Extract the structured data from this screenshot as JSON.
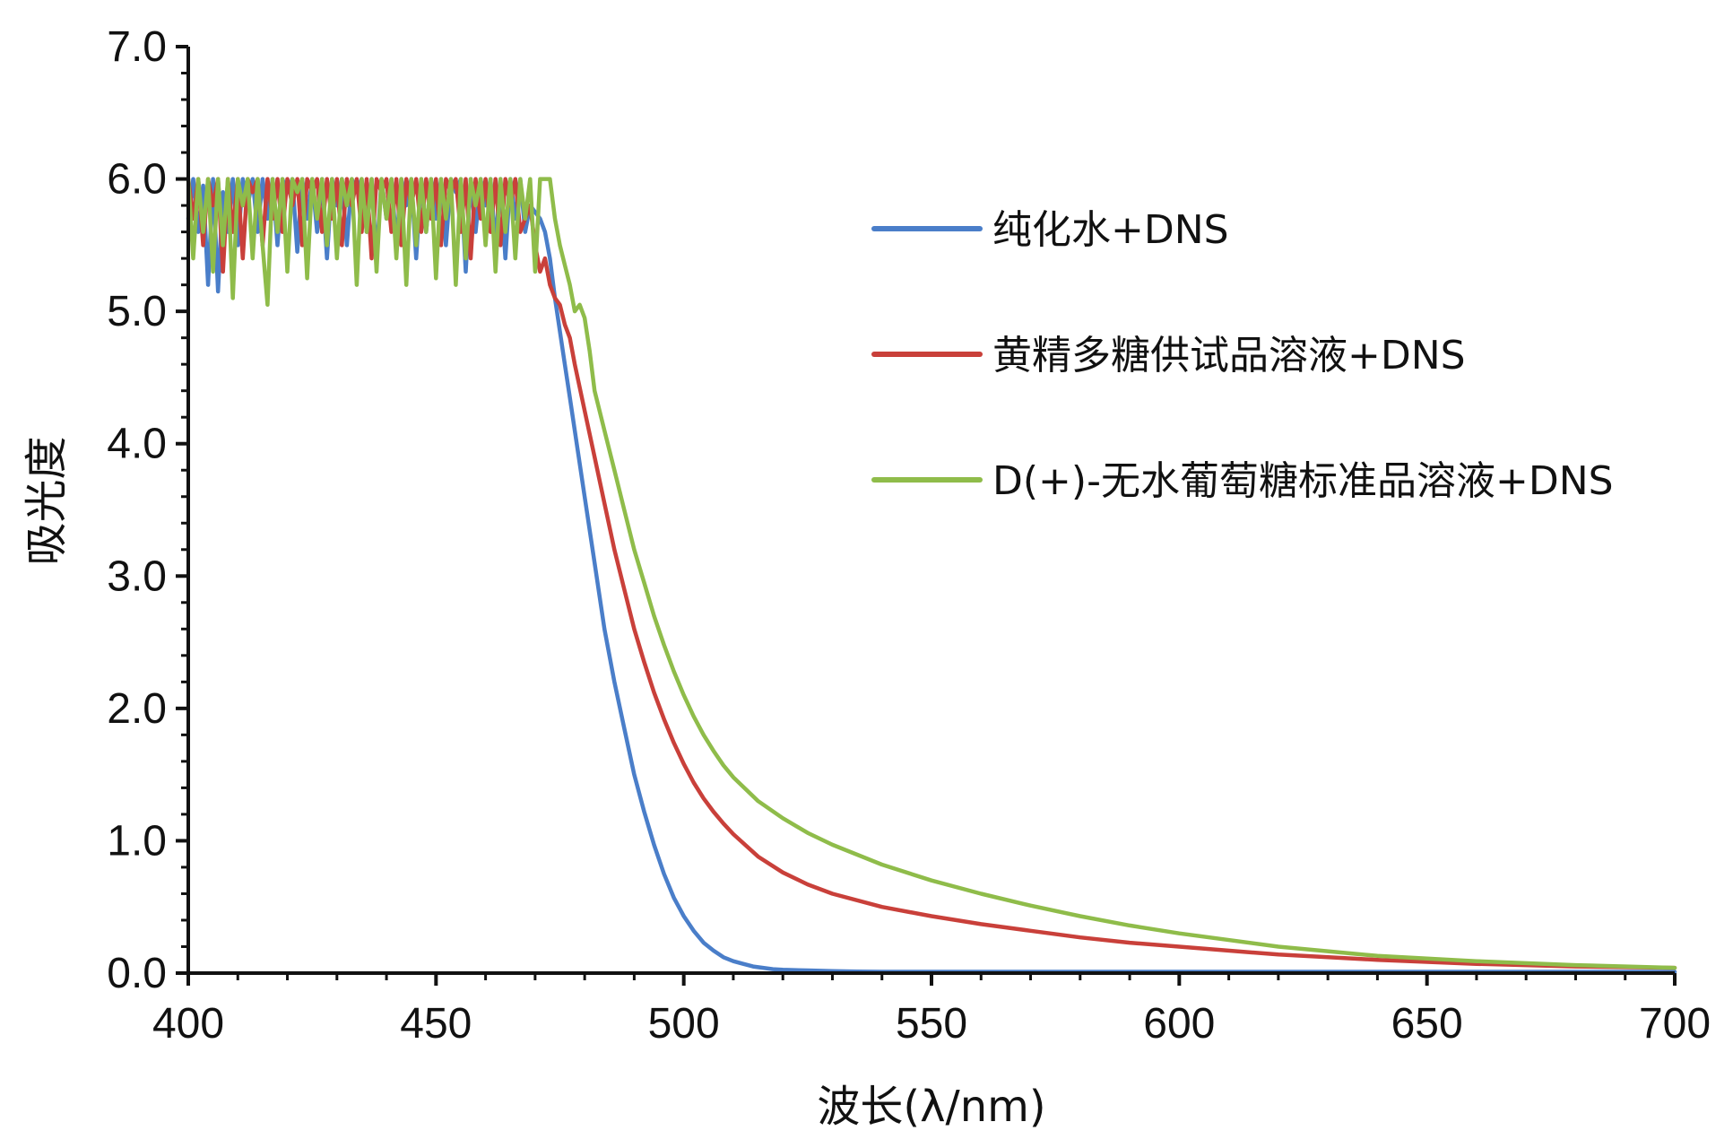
{
  "chart_data": {
    "type": "line",
    "title": "",
    "xlabel": "波长(λ/nm)",
    "ylabel": "吸光度",
    "xlim": [
      400,
      700
    ],
    "ylim": [
      0,
      7
    ],
    "x_ticks": [
      400,
      450,
      500,
      550,
      600,
      650,
      700
    ],
    "x_tick_labels": [
      "400",
      "450",
      "500",
      "550",
      "600",
      "650",
      "700"
    ],
    "y_ticks": [
      0,
      1,
      2,
      3,
      4,
      5,
      6,
      7
    ],
    "y_tick_labels": [
      "0.0",
      "1.0",
      "2.0",
      "3.0",
      "4.0",
      "5.0",
      "6.0",
      "7.0"
    ],
    "grid": false,
    "legend_position": "top-right",
    "series": [
      {
        "name": "纯化水+DNS",
        "color": "#4a7ec9",
        "x": [
          400,
          401,
          402,
          403,
          404,
          405,
          406,
          407,
          408,
          409,
          410,
          411,
          412,
          413,
          414,
          415,
          416,
          417,
          418,
          419,
          420,
          421,
          422,
          423,
          424,
          425,
          426,
          427,
          428,
          429,
          430,
          431,
          432,
          433,
          434,
          435,
          436,
          437,
          438,
          439,
          440,
          441,
          442,
          443,
          444,
          445,
          446,
          447,
          448,
          449,
          450,
          451,
          452,
          453,
          454,
          455,
          456,
          457,
          458,
          459,
          460,
          461,
          462,
          463,
          464,
          465,
          466,
          467,
          468,
          469,
          470,
          471,
          472,
          473,
          474,
          475,
          476,
          477,
          478,
          480,
          482,
          484,
          486,
          488,
          490,
          492,
          494,
          496,
          498,
          500,
          502,
          504,
          506,
          508,
          510,
          512,
          514,
          516,
          518,
          520,
          525,
          530,
          535,
          540,
          550,
          560,
          570,
          580,
          600,
          620,
          640,
          660,
          680,
          700
        ],
        "y": [
          5.7,
          6.0,
          5.6,
          5.95,
          5.2,
          6.0,
          5.15,
          5.9,
          5.6,
          6.0,
          5.5,
          6.0,
          5.8,
          6.0,
          5.6,
          6.0,
          5.7,
          6.0,
          5.5,
          6.0,
          5.9,
          6.0,
          5.45,
          6.0,
          5.7,
          6.0,
          5.6,
          6.0,
          5.4,
          6.0,
          5.8,
          6.0,
          5.5,
          6.0,
          5.9,
          6.0,
          5.6,
          6.0,
          5.4,
          6.0,
          5.7,
          6.0,
          5.5,
          6.0,
          5.8,
          6.0,
          5.4,
          6.0,
          5.6,
          6.0,
          5.7,
          6.0,
          5.5,
          6.0,
          5.9,
          6.0,
          5.3,
          6.0,
          5.6,
          6.0,
          5.8,
          6.0,
          5.5,
          6.0,
          5.4,
          6.0,
          5.7,
          6.0,
          5.6,
          5.8,
          5.75,
          5.7,
          5.6,
          5.4,
          5.1,
          4.85,
          4.6,
          4.35,
          4.1,
          3.6,
          3.1,
          2.6,
          2.2,
          1.85,
          1.5,
          1.22,
          0.97,
          0.75,
          0.57,
          0.43,
          0.32,
          0.23,
          0.17,
          0.12,
          0.09,
          0.07,
          0.05,
          0.04,
          0.03,
          0.025,
          0.02,
          0.015,
          0.012,
          0.01,
          0.01,
          0.01,
          0.01,
          0.01,
          0.01,
          0.01,
          0.01,
          0.01,
          0.01,
          0.01
        ]
      },
      {
        "name": "黄精多糖供试品溶液+DNS",
        "color": "#c9403a",
        "x": [
          400,
          401,
          402,
          403,
          404,
          405,
          406,
          407,
          408,
          409,
          410,
          411,
          412,
          413,
          414,
          415,
          416,
          417,
          418,
          419,
          420,
          421,
          422,
          423,
          424,
          425,
          426,
          427,
          428,
          429,
          430,
          431,
          432,
          433,
          434,
          435,
          436,
          437,
          438,
          439,
          440,
          441,
          442,
          443,
          444,
          445,
          446,
          447,
          448,
          449,
          450,
          451,
          452,
          453,
          454,
          455,
          456,
          457,
          458,
          459,
          460,
          461,
          462,
          463,
          464,
          465,
          466,
          467,
          468,
          469,
          470,
          471,
          472,
          473,
          474,
          475,
          476,
          477,
          478,
          480,
          482,
          484,
          486,
          488,
          490,
          492,
          494,
          496,
          498,
          500,
          502,
          504,
          506,
          508,
          510,
          515,
          520,
          525,
          530,
          540,
          550,
          560,
          570,
          580,
          590,
          600,
          620,
          640,
          660,
          680,
          700
        ],
        "y": [
          6.0,
          5.7,
          6.0,
          5.5,
          6.0,
          5.8,
          6.0,
          5.3,
          6.0,
          5.6,
          6.0,
          5.4,
          6.0,
          5.9,
          6.0,
          5.5,
          6.0,
          5.7,
          6.0,
          5.6,
          6.0,
          5.8,
          6.0,
          5.5,
          6.0,
          5.9,
          6.0,
          5.6,
          6.0,
          5.7,
          6.0,
          5.5,
          6.0,
          5.8,
          6.0,
          5.6,
          6.0,
          5.4,
          6.0,
          5.9,
          6.0,
          5.6,
          6.0,
          5.5,
          6.0,
          5.8,
          6.0,
          5.6,
          6.0,
          5.7,
          6.0,
          5.5,
          6.0,
          5.9,
          6.0,
          5.6,
          6.0,
          5.4,
          6.0,
          5.7,
          6.0,
          5.6,
          6.0,
          5.5,
          6.0,
          5.8,
          6.0,
          5.6,
          5.7,
          5.8,
          5.5,
          5.3,
          5.4,
          5.2,
          5.1,
          5.05,
          4.9,
          4.8,
          4.6,
          4.25,
          3.9,
          3.55,
          3.2,
          2.9,
          2.6,
          2.35,
          2.12,
          1.92,
          1.74,
          1.58,
          1.44,
          1.32,
          1.22,
          1.13,
          1.05,
          0.88,
          0.76,
          0.67,
          0.6,
          0.5,
          0.43,
          0.37,
          0.32,
          0.27,
          0.23,
          0.2,
          0.14,
          0.1,
          0.07,
          0.05,
          0.04
        ]
      },
      {
        "name": "D(+)-无水葡萄糖标准品溶液+DNS",
        "color": "#8fbc4a",
        "x": [
          400,
          401,
          402,
          403,
          404,
          405,
          406,
          407,
          408,
          409,
          410,
          411,
          412,
          413,
          414,
          415,
          416,
          417,
          418,
          419,
          420,
          421,
          422,
          423,
          424,
          425,
          426,
          427,
          428,
          429,
          430,
          431,
          432,
          433,
          434,
          435,
          436,
          437,
          438,
          439,
          440,
          441,
          442,
          443,
          444,
          445,
          446,
          447,
          448,
          449,
          450,
          451,
          452,
          453,
          454,
          455,
          456,
          457,
          458,
          459,
          460,
          461,
          462,
          463,
          464,
          465,
          466,
          467,
          468,
          469,
          470,
          471,
          472,
          473,
          474,
          475,
          476,
          477,
          478,
          479,
          480,
          481,
          482,
          484,
          486,
          488,
          490,
          492,
          494,
          496,
          498,
          500,
          502,
          504,
          506,
          508,
          510,
          515,
          520,
          525,
          530,
          540,
          550,
          560,
          570,
          580,
          590,
          600,
          620,
          640,
          660,
          680,
          700
        ],
        "y": [
          6.0,
          5.4,
          6.0,
          5.6,
          6.0,
          5.3,
          6.0,
          5.5,
          6.0,
          5.1,
          6.0,
          5.8,
          6.0,
          5.4,
          6.0,
          5.5,
          5.05,
          6.0,
          5.6,
          6.0,
          5.3,
          6.0,
          5.9,
          6.0,
          5.25,
          6.0,
          5.7,
          6.0,
          5.5,
          6.0,
          5.4,
          6.0,
          5.8,
          6.0,
          5.2,
          6.0,
          5.6,
          6.0,
          5.3,
          6.0,
          5.7,
          6.0,
          5.4,
          6.0,
          5.2,
          6.0,
          5.5,
          6.0,
          5.6,
          6.0,
          5.25,
          6.0,
          5.7,
          6.0,
          5.2,
          6.0,
          5.4,
          6.0,
          5.8,
          6.0,
          5.5,
          6.0,
          5.3,
          6.0,
          5.6,
          6.0,
          5.4,
          6.0,
          5.7,
          6.0,
          5.3,
          6.0,
          6.0,
          6.0,
          5.7,
          5.5,
          5.35,
          5.2,
          5.0,
          5.05,
          4.95,
          4.7,
          4.4,
          4.1,
          3.8,
          3.5,
          3.2,
          2.95,
          2.7,
          2.48,
          2.28,
          2.1,
          1.94,
          1.8,
          1.68,
          1.57,
          1.48,
          1.3,
          1.17,
          1.06,
          0.97,
          0.82,
          0.7,
          0.6,
          0.51,
          0.43,
          0.36,
          0.3,
          0.2,
          0.13,
          0.09,
          0.06,
          0.04
        ]
      }
    ]
  }
}
